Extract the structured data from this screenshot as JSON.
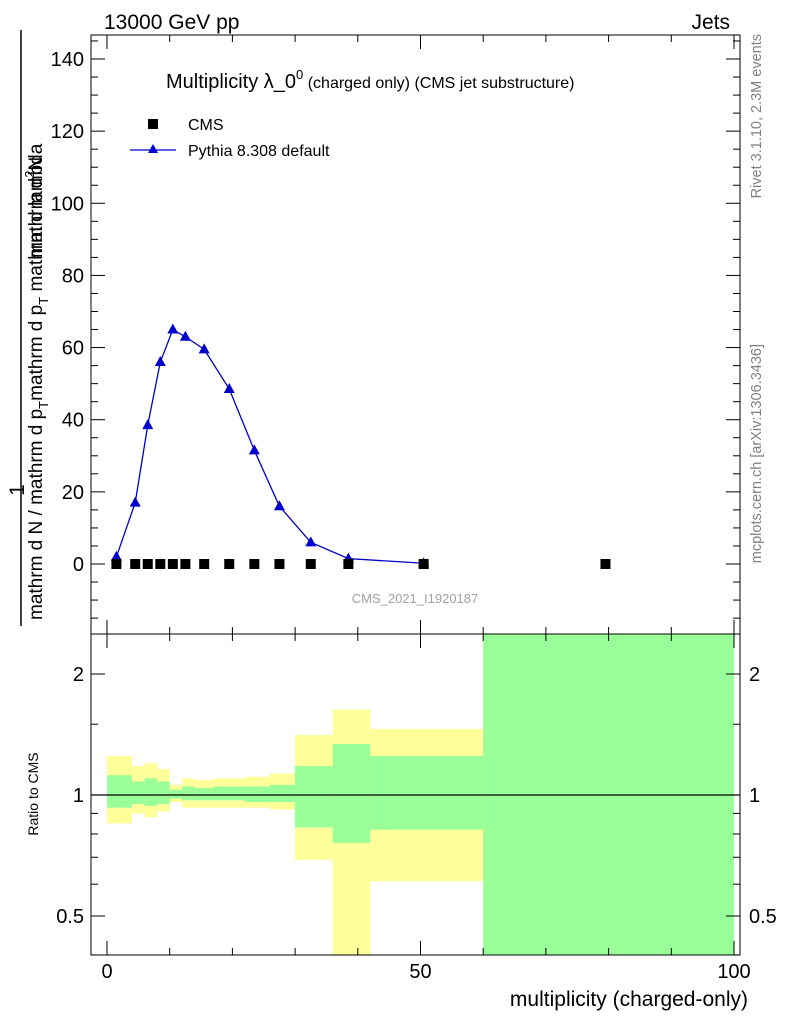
{
  "header": {
    "left": "13000 GeV pp",
    "right": "Jets"
  },
  "side": {
    "rivet": "Rivet 3.1.10,  2.3M events",
    "mcplots": "mcplots.cern.ch [arXiv:1306.3436]"
  },
  "chart_data": [
    {
      "type": "scatter",
      "title": "Multiplicity λ_0",
      "title_sup": "0",
      "title_rest": " (charged only) (CMS jet substructure)",
      "watermark": "CMS_2021_I1920187",
      "ylabel_top": "1",
      "ylabel_num_a": "mathrm d",
      "ylabel_num_b": "2",
      "ylabel_num_c": "N",
      "ylabel_den_a": "mathrm d N / mathrm d p",
      "ylabel_den_b": "T",
      "ylabel_den_c": "mathrm d p",
      "ylabel_den_d": "T",
      "ylabel_den_e": " mathrm d lambda",
      "xlim": [
        -2,
        100
      ],
      "ylim": [
        -18,
        147
      ],
      "yticks": [
        0,
        20,
        40,
        60,
        80,
        100,
        120,
        140
      ],
      "ytick_labels": [
        "0",
        "20",
        "40",
        "60",
        "80",
        "100",
        "120",
        "140"
      ],
      "legend_position": "top-left",
      "series": [
        {
          "name": "CMS",
          "color": "#000000",
          "marker": "square",
          "x": [
            1.5,
            4.5,
            6.5,
            8.5,
            10.5,
            12.5,
            15.5,
            19.5,
            23.5,
            27.5,
            32.5,
            38.5,
            50.5,
            79.5
          ],
          "y": [
            0,
            0,
            0,
            0,
            0,
            0,
            0,
            0,
            0,
            0,
            0,
            0,
            0,
            0
          ]
        },
        {
          "name": "Pythia 8.308 default",
          "color": "#0000cc",
          "marker": "triangle",
          "x": [
            1.5,
            4.5,
            6.5,
            8.5,
            10.5,
            12.5,
            15.5,
            19.5,
            23.5,
            27.5,
            32.5,
            38.5,
            50.5
          ],
          "y": [
            2,
            17,
            38.5,
            56,
            65,
            63,
            59.5,
            48.5,
            31.5,
            16,
            6,
            1.5,
            0.2
          ]
        }
      ]
    },
    {
      "type": "area",
      "ylabel": "Ratio to CMS",
      "xlabel": "multiplicity (charged-only)",
      "xlim": [
        -2,
        100
      ],
      "ylim": [
        0.39,
        2.3
      ],
      "scale": "log",
      "xticks": [
        0,
        50,
        100
      ],
      "xtick_labels": [
        "0",
        "50",
        "100"
      ],
      "yticks": [
        0.5,
        1,
        2
      ],
      "ytick_labels": [
        "0.5",
        "1",
        "2"
      ],
      "reference_line": 1,
      "bands": [
        {
          "x0": 0,
          "x1": 2,
          "y_lo": 0.85,
          "y_hi": 1.25,
          "g_lo": 0.93,
          "g_hi": 1.12
        },
        {
          "x0": 2,
          "x1": 4,
          "y_lo": 0.85,
          "y_hi": 1.25,
          "g_lo": 0.93,
          "g_hi": 1.12
        },
        {
          "x0": 4,
          "x1": 6,
          "y_lo": 0.9,
          "y_hi": 1.18,
          "g_lo": 0.95,
          "g_hi": 1.08
        },
        {
          "x0": 6,
          "x1": 8,
          "y_lo": 0.88,
          "y_hi": 1.2,
          "g_lo": 0.94,
          "g_hi": 1.1
        },
        {
          "x0": 8,
          "x1": 10,
          "y_lo": 0.91,
          "y_hi": 1.16,
          "g_lo": 0.95,
          "g_hi": 1.08
        },
        {
          "x0": 10,
          "x1": 12,
          "y_lo": 0.96,
          "y_hi": 1.06,
          "g_lo": 0.98,
          "g_hi": 1.03
        },
        {
          "x0": 12,
          "x1": 14,
          "y_lo": 0.93,
          "y_hi": 1.1,
          "g_lo": 0.97,
          "g_hi": 1.05
        },
        {
          "x0": 14,
          "x1": 17,
          "y_lo": 0.93,
          "y_hi": 1.09,
          "g_lo": 0.97,
          "g_hi": 1.04
        },
        {
          "x0": 17,
          "x1": 22,
          "y_lo": 0.93,
          "y_hi": 1.1,
          "g_lo": 0.97,
          "g_hi": 1.05
        },
        {
          "x0": 22,
          "x1": 26,
          "y_lo": 0.93,
          "y_hi": 1.11,
          "g_lo": 0.96,
          "g_hi": 1.05
        },
        {
          "x0": 26,
          "x1": 30,
          "y_lo": 0.92,
          "y_hi": 1.13,
          "g_lo": 0.96,
          "g_hi": 1.06
        },
        {
          "x0": 30,
          "x1": 36,
          "y_lo": 0.69,
          "y_hi": 1.41,
          "g_lo": 0.83,
          "g_hi": 1.18
        },
        {
          "x0": 36,
          "x1": 42,
          "y_lo": 0.38,
          "y_hi": 1.63,
          "g_lo": 0.76,
          "g_hi": 1.34
        },
        {
          "x0": 42,
          "x1": 60,
          "y_lo": 0.61,
          "y_hi": 1.46,
          "g_lo": 0.82,
          "g_hi": 1.25
        },
        {
          "x0": 60,
          "x1": 100,
          "y_lo": 0.3,
          "y_hi": 3,
          "g_lo": 0.3,
          "g_hi": 3
        }
      ]
    }
  ]
}
